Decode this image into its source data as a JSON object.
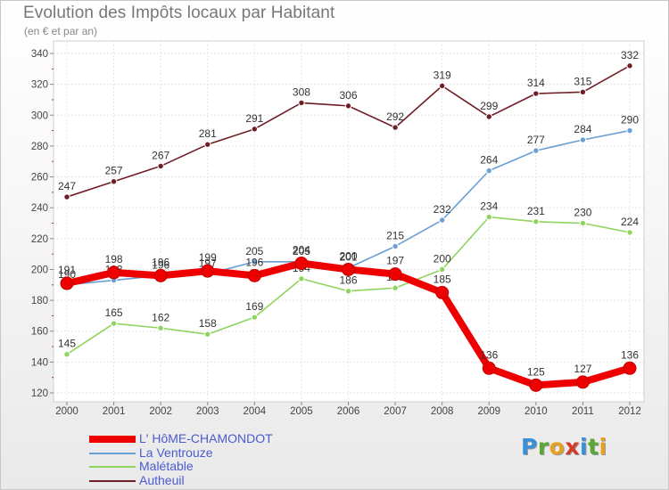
{
  "title": "Evolution des Impôts locaux par Habitant",
  "subtitle": "(en € et par an)",
  "logo": {
    "text": "Proxiti",
    "letters": [
      "P",
      "r",
      "o",
      "x",
      "i",
      "t",
      "i"
    ],
    "colors": [
      "#3a8fd8",
      "#5aa832",
      "#e8a020",
      "#d83a2a",
      "#3a8fd8",
      "#5aa832",
      "#e8a020"
    ]
  },
  "chart_data": {
    "type": "line",
    "title": "Evolution des Impôts locaux par Habitant",
    "subtitle": "(en € et par an)",
    "xlabel": "",
    "ylabel": "",
    "categories": [
      "2000",
      "2001",
      "2002",
      "2003",
      "2004",
      "2005",
      "2006",
      "2007",
      "2008",
      "2009",
      "2010",
      "2011",
      "2012"
    ],
    "ylim": [
      120,
      340
    ],
    "yticks": [
      120,
      140,
      160,
      180,
      200,
      220,
      240,
      260,
      280,
      300,
      320,
      340
    ],
    "grid": true,
    "legend_position": "bottom-left",
    "series": [
      {
        "name": "Autheuil",
        "color": "#6e1e24",
        "values": [
          247,
          257,
          267,
          281,
          291,
          308,
          306,
          292,
          319,
          299,
          314,
          315,
          332
        ],
        "labels": [
          "247",
          "257",
          "267",
          "281",
          "291",
          "308",
          "306",
          "292",
          "319",
          "299",
          "314",
          "315",
          "332"
        ]
      },
      {
        "name": "La Ventrouze",
        "color": "#6a9fd4",
        "values": [
          190,
          193,
          196,
          197,
          205,
          205,
          201,
          215,
          232,
          264,
          277,
          284,
          290
        ],
        "labels": [
          "190",
          "193",
          "196",
          "197",
          "205",
          "205",
          "201",
          "215",
          "232",
          "264",
          "277",
          "284",
          "290"
        ]
      },
      {
        "name": "Malétable",
        "color": "#8fd45e",
        "values": [
          145,
          165,
          162,
          158,
          169,
          194,
          186,
          188,
          200,
          234,
          231,
          230,
          224
        ],
        "labels": [
          "145",
          "165",
          "162",
          "158",
          "169",
          "194",
          "186",
          "188",
          "200",
          "234",
          "231",
          "230",
          "224"
        ]
      },
      {
        "name": "L' HôME-CHAMONDOT",
        "color": "#ee0000",
        "values": [
          191,
          198,
          196,
          199,
          196,
          204,
          200,
          197,
          185,
          136,
          125,
          127,
          136
        ],
        "labels": [
          "191",
          "198",
          "196",
          "199",
          "196",
          "204",
          "200",
          "197",
          "185",
          "136",
          "125",
          "127",
          "136"
        ]
      }
    ],
    "legend": [
      {
        "name": "L' HôME-CHAMONDOT",
        "color": "#ee0000",
        "thickness": 8
      },
      {
        "name": "La Ventrouze",
        "color": "#6a9fd4",
        "thickness": 2
      },
      {
        "name": "Malétable",
        "color": "#8fd45e",
        "thickness": 2
      },
      {
        "name": "Autheuil",
        "color": "#6e1e24",
        "thickness": 2
      }
    ]
  }
}
